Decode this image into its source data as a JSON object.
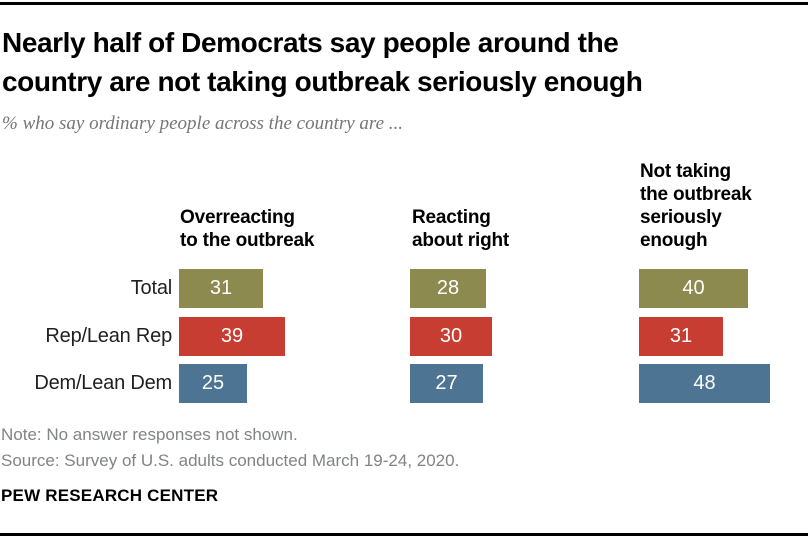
{
  "chart_data": {
    "type": "bar",
    "orientation": "horizontal-grouped",
    "title": "Nearly half of Democrats say people around the country are not taking outbreak seriously enough",
    "title_lines": [
      "Nearly half of Democrats say people around the",
      "country are not taking outbreak seriously enough"
    ],
    "subtitle": "% who say ordinary people across the country are ...",
    "categories": [
      "Total",
      "Rep/Lean Rep",
      "Dem/Lean Dem"
    ],
    "category_colors": [
      "#8C8A4E",
      "#C83D31",
      "#4D7593"
    ],
    "series": [
      {
        "name": "Overreacting to the outbreak",
        "name_lines": [
          "Overreacting",
          "to the outbreak"
        ],
        "values": [
          31,
          39,
          25
        ]
      },
      {
        "name": "Reacting about right",
        "name_lines": [
          "Reacting",
          "about right"
        ],
        "values": [
          28,
          30,
          27
        ]
      },
      {
        "name": "Not taking the outbreak seriously enough",
        "name_lines": [
          "Not taking",
          "the outbreak",
          "seriously",
          "enough"
        ],
        "values": [
          40,
          31,
          48
        ]
      }
    ],
    "value_unit": "%",
    "value_labels": "inside-center-white",
    "xlim": [
      0,
      50
    ],
    "grid": false,
    "legend_position": "none"
  },
  "footer": {
    "note": "Note: No answer responses not shown.",
    "source": "Source: Survey of U.S. adults conducted March 19-24, 2020.",
    "brand": "PEW RESEARCH CENTER"
  }
}
